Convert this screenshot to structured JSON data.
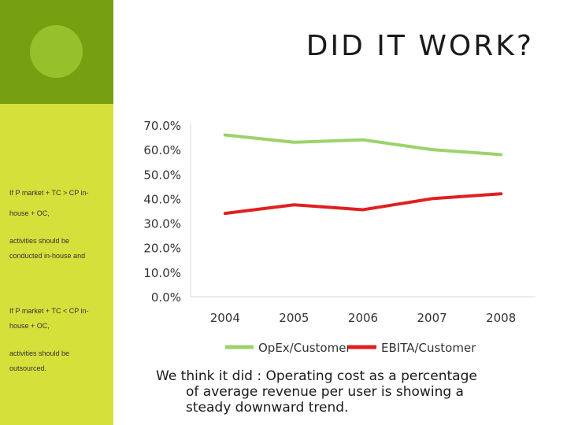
{
  "slide": {
    "title": "DID IT WORK?",
    "side_lines": [
      "If P market + TC > CP in-",
      "house + OC,",
      "activities should be",
      "conducted in-house and",
      "If P market + TC < CP in-",
      "house + OC,",
      "activities should be",
      "outsourced."
    ],
    "caption_line1": "We think it did : Operating cost as a percentage",
    "caption_line2": "of average revenue per user is showing a",
    "caption_line3": "steady downward trend."
  },
  "colors": {
    "dark_green": "#76a012",
    "circle": "#96c12a",
    "lime": "#d5e03a",
    "opex": "#9bd36a",
    "ebita": "#e02020"
  },
  "chart_data": {
    "type": "line",
    "categories": [
      "2004",
      "2005",
      "2006",
      "2007",
      "2008"
    ],
    "series": [
      {
        "name": "OpEx/Customer",
        "values": [
          0.66,
          0.63,
          0.64,
          0.6,
          0.58
        ]
      },
      {
        "name": "EBITA/Customer",
        "values": [
          0.34,
          0.375,
          0.355,
          0.4,
          0.42
        ]
      }
    ],
    "ylim": [
      0,
      0.7
    ],
    "yticks": [
      "0.0%",
      "10.0%",
      "20.0%",
      "30.0%",
      "40.0%",
      "50.0%",
      "60.0%",
      "70.0%"
    ],
    "title": "",
    "xlabel": "",
    "ylabel": "",
    "legend": "bottom"
  }
}
